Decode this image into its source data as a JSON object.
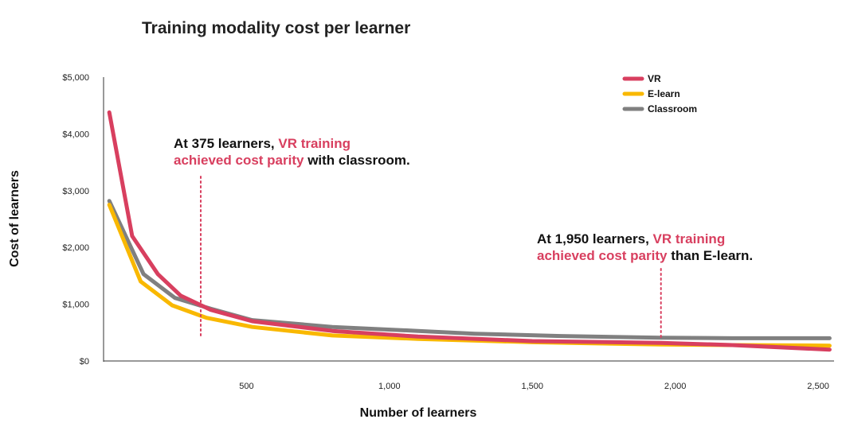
{
  "chart_data": {
    "type": "line",
    "title": "Training modality cost per learner",
    "xlabel": "Number of learners",
    "ylabel": "Cost of learners",
    "xlim": [
      0,
      2550
    ],
    "ylim": [
      0,
      5000
    ],
    "x_ticks": [
      500,
      1000,
      1500,
      2000,
      2500
    ],
    "x_tick_labels": [
      "500",
      "1,000",
      "1,500",
      "2,000",
      "2,500"
    ],
    "y_ticks": [
      0,
      1000,
      2000,
      3000,
      4000,
      5000
    ],
    "y_tick_labels": [
      "$0",
      "$1,000",
      "$2,000",
      "$3,000",
      "$4,000",
      "$5,000"
    ],
    "colors": {
      "VR": "#d83f5f",
      "E-learn": "#f9b800",
      "Classroom": "#808080"
    },
    "series": [
      {
        "name": "VR",
        "x": [
          20,
          100,
          190,
          270,
          375,
          520,
          800,
          1100,
          1500,
          1950,
          2200,
          2540
        ],
        "y": [
          4380,
          2200,
          1530,
          1150,
          900,
          700,
          530,
          430,
          350,
          320,
          280,
          200
        ]
      },
      {
        "name": "E-learn",
        "x": [
          20,
          130,
          240,
          360,
          520,
          800,
          1100,
          1500,
          1950,
          2200,
          2540
        ],
        "y": [
          2750,
          1400,
          980,
          760,
          600,
          450,
          390,
          330,
          290,
          280,
          270
        ]
      },
      {
        "name": "Classroom",
        "x": [
          20,
          140,
          250,
          375,
          520,
          800,
          1100,
          1300,
          1600,
          1950,
          2200,
          2540
        ],
        "y": [
          2820,
          1530,
          1110,
          920,
          720,
          600,
          530,
          480,
          440,
          410,
          400,
          400
        ]
      }
    ],
    "legend": [
      "VR",
      "E-learn",
      "Classroom"
    ],
    "legend_position": "top-right",
    "annotations": [
      {
        "x": 340,
        "lines": [
          [
            {
              "text": "At 375 learners, ",
              "style": "dark"
            },
            {
              "text": "VR training",
              "style": "accent"
            }
          ],
          [
            {
              "text": "achieved cost parity",
              "style": "accent"
            },
            {
              "text": " with classroom.",
              "style": "dark"
            }
          ]
        ]
      },
      {
        "x": 1950,
        "lines": [
          [
            {
              "text": "At 1,950 learners, ",
              "style": "dark"
            },
            {
              "text": "VR training",
              "style": "accent"
            }
          ],
          [
            {
              "text": "achieved cost parity",
              "style": "accent"
            },
            {
              "text": " than E-learn.",
              "style": "dark"
            }
          ]
        ]
      }
    ]
  }
}
